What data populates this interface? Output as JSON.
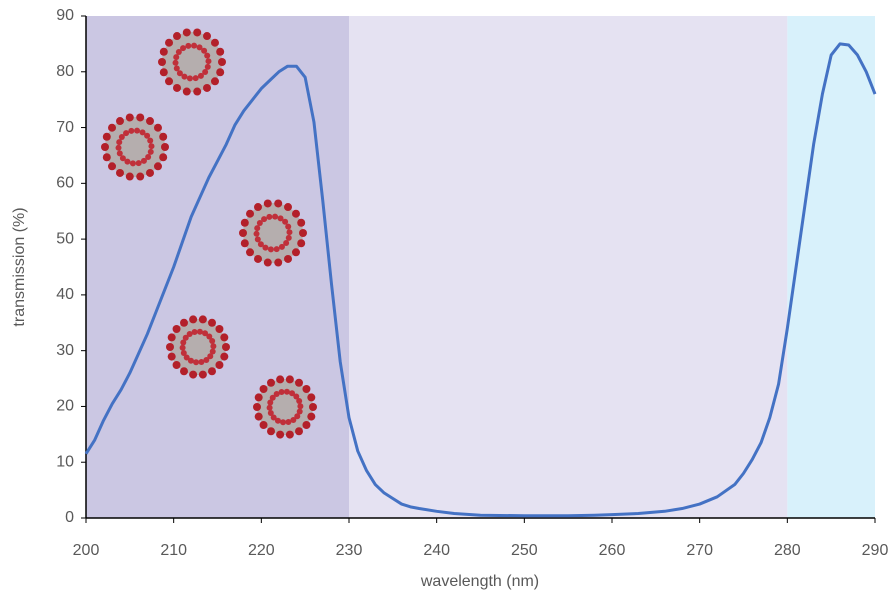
{
  "chart_data": {
    "type": "line",
    "x_label": "wavelength (nm)",
    "y_label": "transmission (%)",
    "x": [
      200,
      201,
      202,
      203,
      204,
      205,
      206,
      207,
      208,
      209,
      210,
      211,
      212,
      213,
      214,
      215,
      216,
      217,
      218,
      219,
      220,
      221,
      222,
      223,
      224,
      225,
      226,
      227,
      228,
      229,
      230,
      231,
      232,
      233,
      234,
      235,
      236,
      237,
      238,
      240,
      242,
      245,
      250,
      255,
      258,
      260,
      263,
      266,
      268,
      270,
      272,
      274,
      275,
      276,
      277,
      278,
      279,
      280,
      281,
      282,
      283,
      284,
      285,
      286,
      287,
      288,
      289,
      290
    ],
    "series": [
      {
        "color": "#4472c4",
        "values": [
          11.5,
          14,
          17.5,
          20.5,
          23,
          26,
          29.5,
          33,
          37,
          41,
          45,
          49.5,
          54,
          57.5,
          61,
          64,
          67,
          70.5,
          73,
          75,
          77,
          78.5,
          80,
          81,
          81,
          79,
          71,
          57,
          42,
          28,
          18,
          12,
          8.5,
          6,
          4.5,
          3.5,
          2.5,
          2,
          1.7,
          1.2,
          0.8,
          0.5,
          0.4,
          0.4,
          0.5,
          0.6,
          0.8,
          1.2,
          1.7,
          2.5,
          3.8,
          6,
          8,
          10.5,
          13.5,
          18,
          24,
          34,
          45,
          56,
          67,
          76,
          83,
          85,
          84.8,
          83,
          80,
          76
        ]
      }
    ],
    "shaded_regions": [
      {
        "from": 200,
        "to": 230,
        "color": "#cbc7e3"
      },
      {
        "from": 230,
        "to": 280,
        "color": "#e5e2f2"
      },
      {
        "from": 280,
        "to": 290,
        "color": "#d8f1fb"
      }
    ],
    "xlim": [
      200,
      290
    ],
    "xticks": [
      200,
      210,
      220,
      230,
      240,
      250,
      260,
      270,
      280,
      290
    ],
    "ylim": [
      0,
      90
    ],
    "yticks": [
      0,
      10,
      20,
      30,
      40,
      50,
      60,
      70,
      80,
      90
    ]
  }
}
